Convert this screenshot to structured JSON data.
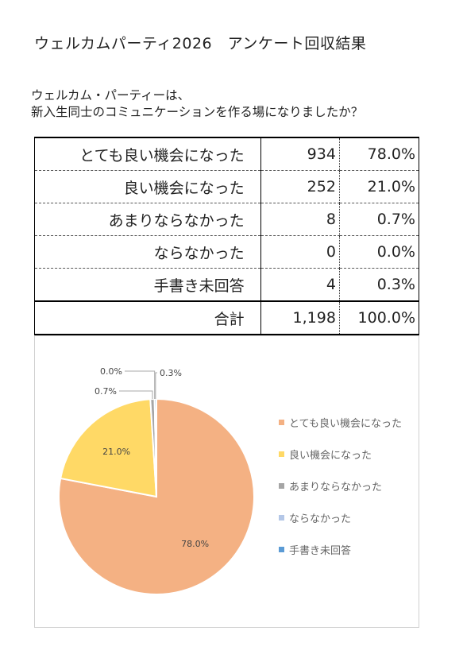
{
  "header": {
    "title": "ウェルカムパーティ2026　アンケート回収結果"
  },
  "question": {
    "line1": "ウェルカム・パーティーは、",
    "line2": "新入生同士のコミュニケーションを作る場になりましたか？"
  },
  "table": {
    "rows": [
      {
        "label": "とても良い機会になった",
        "count": "934",
        "pct": "78.0%"
      },
      {
        "label": "良い機会になった",
        "count": "252",
        "pct": "21.0%"
      },
      {
        "label": "あまりならなかった",
        "count": "8",
        "pct": "0.7%"
      },
      {
        "label": "ならなかった",
        "count": "0",
        "pct": "0.0%"
      },
      {
        "label": "手書き未回答",
        "count": "4",
        "pct": "0.3%"
      }
    ],
    "total": {
      "label": "合計",
      "count": "1,198",
      "pct": "100.0%"
    }
  },
  "chart_data": {
    "type": "pie",
    "categories": [
      "とても良い機会になった",
      "良い機会になった",
      "あまりならなかった",
      "ならなかった",
      "手書き未回答"
    ],
    "values": [
      78.0,
      21.0,
      0.7,
      0.0,
      0.3
    ],
    "data_labels": [
      "78.0%",
      "21.0%",
      "0.7%",
      "0.0%",
      "0.3%"
    ],
    "colors": [
      "#F4B183",
      "#FFD966",
      "#A5A5A5",
      "#B4C7E7",
      "#5B9BD5"
    ],
    "legend_position": "right",
    "start_angle": "top, clockwise"
  }
}
